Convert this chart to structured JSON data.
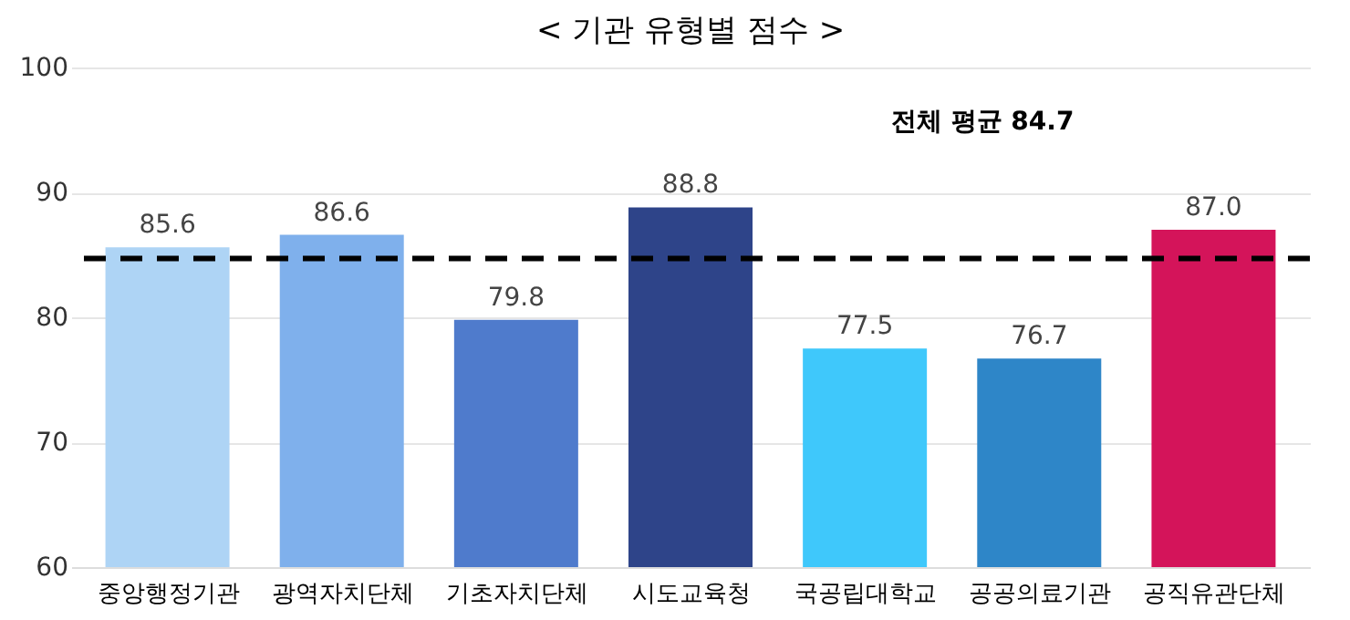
{
  "chart_data": {
    "type": "bar",
    "title": "< 기관 유형별 점수 >",
    "categories": [
      "중앙행정기관",
      "광역자치단체",
      "기초자치단체",
      "시도교육청",
      "국공립대학교",
      "공공의료기관",
      "공직유관단체"
    ],
    "values": [
      85.6,
      86.6,
      79.8,
      88.8,
      77.5,
      76.7,
      87.0
    ],
    "value_labels": [
      "85.6",
      "86.6",
      "79.8",
      "88.8",
      "77.5",
      "76.7",
      "87.0"
    ],
    "colors": [
      "#aed4f5",
      "#7fb0ec",
      "#4f7bcc",
      "#2e4489",
      "#3fc8fb",
      "#2e86c8",
      "#d4145a"
    ],
    "ylim": [
      60,
      100
    ],
    "yticks": [
      60,
      70,
      80,
      90,
      100
    ],
    "grid": "y",
    "ref_lines": [
      {
        "axis": "y",
        "value": 84.7,
        "label": "전체 평균 84.7",
        "color": "#000000",
        "line_style": "dashed"
      }
    ]
  }
}
